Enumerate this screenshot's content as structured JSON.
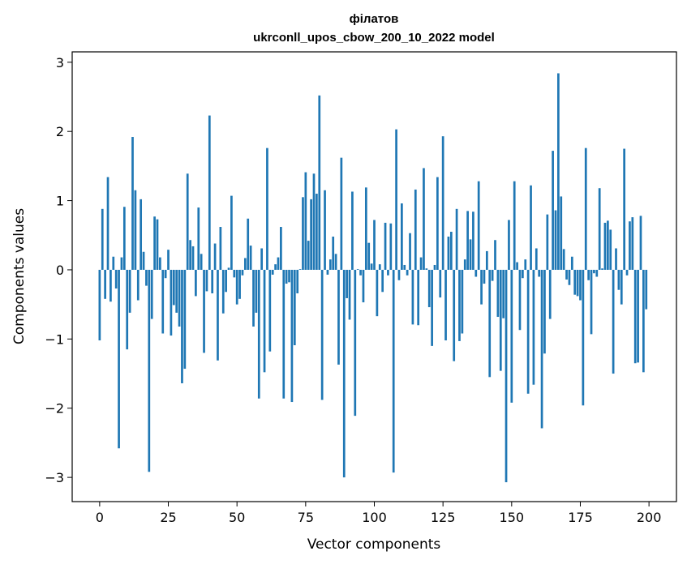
{
  "chart_data": {
    "type": "bar",
    "title": "філатов",
    "subtitle": "ukrconll_upos_cbow_200_10_2022 model",
    "xlabel": "Vector components",
    "ylabel": "Components values",
    "xlim": [
      -10,
      210
    ],
    "ylim": [
      -3.35,
      3.15
    ],
    "xticks": [
      0,
      25,
      50,
      75,
      100,
      125,
      150,
      175,
      200
    ],
    "yticks": [
      -3,
      -2,
      -1,
      0,
      1,
      2,
      3
    ],
    "xtick_labels": [
      "0",
      "25",
      "50",
      "75",
      "100",
      "125",
      "150",
      "175",
      "200"
    ],
    "ytick_labels": [
      "−3",
      "−2",
      "−1",
      "0",
      "1",
      "2",
      "3"
    ],
    "bar_color": "#1f77b4",
    "grid": false,
    "x": [
      0,
      1,
      2,
      3,
      4,
      5,
      6,
      7,
      8,
      9,
      10,
      11,
      12,
      13,
      14,
      15,
      16,
      17,
      18,
      19,
      20,
      21,
      22,
      23,
      24,
      25,
      26,
      27,
      28,
      29,
      30,
      31,
      32,
      33,
      34,
      35,
      36,
      37,
      38,
      39,
      40,
      41,
      42,
      43,
      44,
      45,
      46,
      47,
      48,
      49,
      50,
      51,
      52,
      53,
      54,
      55,
      56,
      57,
      58,
      59,
      60,
      61,
      62,
      63,
      64,
      65,
      66,
      67,
      68,
      69,
      70,
      71,
      72,
      73,
      74,
      75,
      76,
      77,
      78,
      79,
      80,
      81,
      82,
      83,
      84,
      85,
      86,
      87,
      88,
      89,
      90,
      91,
      92,
      93,
      94,
      95,
      96,
      97,
      98,
      99,
      100,
      101,
      102,
      103,
      104,
      105,
      106,
      107,
      108,
      109,
      110,
      111,
      112,
      113,
      114,
      115,
      116,
      117,
      118,
      119,
      120,
      121,
      122,
      123,
      124,
      125,
      126,
      127,
      128,
      129,
      130,
      131,
      132,
      133,
      134,
      135,
      136,
      137,
      138,
      139,
      140,
      141,
      142,
      143,
      144,
      145,
      146,
      147,
      148,
      149,
      150,
      151,
      152,
      153,
      154,
      155,
      156,
      157,
      158,
      159,
      160,
      161,
      162,
      163,
      164,
      165,
      166,
      167,
      168,
      169,
      170,
      171,
      172,
      173,
      174,
      175,
      176,
      177,
      178,
      179,
      180,
      181,
      182,
      183,
      184,
      185,
      186,
      187,
      188,
      189,
      190,
      191,
      192,
      193,
      194,
      195,
      196,
      197,
      198,
      199
    ],
    "values": [
      -1.02,
      0.88,
      -0.42,
      1.34,
      -0.46,
      0.19,
      -0.27,
      -2.58,
      0.18,
      0.91,
      -1.15,
      -0.62,
      1.92,
      1.15,
      -0.44,
      1.02,
      0.26,
      -0.23,
      -2.92,
      -0.71,
      0.77,
      0.73,
      0.18,
      -0.92,
      -0.12,
      0.29,
      -0.95,
      -0.51,
      -0.62,
      -0.82,
      -1.64,
      -1.43,
      1.39,
      0.43,
      0.34,
      -0.38,
      0.9,
      0.23,
      -1.2,
      -0.31,
      2.23,
      -0.34,
      0.38,
      -1.31,
      0.62,
      -0.63,
      -0.32,
      0.03,
      1.07,
      -0.11,
      -0.5,
      -0.42,
      -0.08,
      0.17,
      0.74,
      0.35,
      -0.82,
      -0.62,
      -1.86,
      0.31,
      -1.48,
      1.76,
      -1.18,
      -0.07,
      0.08,
      0.18,
      0.62,
      -1.86,
      -0.2,
      -0.18,
      -1.91,
      -1.09,
      -0.34,
      0.01,
      1.05,
      1.41,
      0.42,
      1.02,
      1.39,
      1.1,
      2.52,
      -1.88,
      1.15,
      -0.07,
      0.15,
      0.48,
      0.23,
      -1.37,
      1.62,
      -3.0,
      -0.41,
      -0.72,
      1.13,
      -2.11,
      0.01,
      -0.08,
      -0.47,
      1.19,
      0.39,
      0.09,
      0.72,
      -0.67,
      0.08,
      -0.32,
      0.68,
      -0.08,
      0.67,
      -2.93,
      2.03,
      -0.15,
      0.96,
      0.07,
      -0.08,
      0.53,
      -0.79,
      1.16,
      -0.8,
      0.18,
      1.47,
      0.02,
      -0.54,
      -1.1,
      0.07,
      1.34,
      -0.4,
      1.93,
      -1.02,
      0.48,
      0.55,
      -1.32,
      0.88,
      -1.03,
      -0.92,
      0.15,
      0.85,
      0.44,
      0.84,
      -0.1,
      1.28,
      -0.5,
      -0.2,
      0.27,
      -1.55,
      -0.16,
      0.43,
      -0.68,
      -1.46,
      -0.7,
      -3.07,
      0.72,
      -1.92,
      1.28,
      0.11,
      -0.87,
      -0.12,
      0.15,
      -1.79,
      1.22,
      -1.66,
      0.31,
      -0.1,
      -2.29,
      -1.21,
      0.8,
      -0.71,
      1.72,
      0.86,
      2.84,
      1.06,
      0.3,
      -0.14,
      -0.22,
      0.19,
      -0.36,
      -0.38,
      -0.44,
      -1.96,
      1.76,
      -0.15,
      -0.93,
      -0.05,
      -0.1,
      1.18,
      0.02,
      0.68,
      0.71,
      0.58,
      -1.5,
      0.31,
      -0.29,
      -0.5,
      1.75,
      -0.08,
      0.7,
      0.76,
      -1.35,
      -1.34,
      0.78,
      -1.48,
      -0.57
    ]
  }
}
